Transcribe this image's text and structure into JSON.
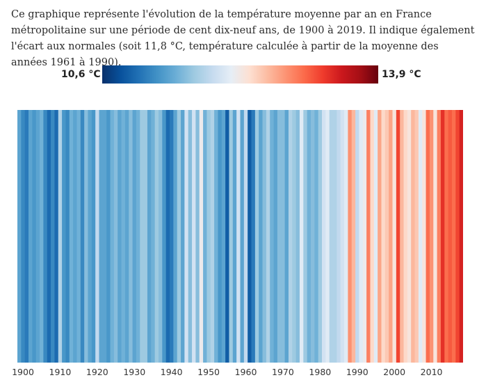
{
  "intro": {
    "text": "Ce graphique représente l'évolution de la température moyenne par an en France métropolitaine sur une période de cent dix-neuf ans, de 1900 à 2019. Il indique également l'écart aux normales (soit 11,8 °C, température calculée à partir de la moyenne des années 1961 à 1990)."
  },
  "colors": {
    "scale": [
      "#08306b",
      "#08519c",
      "#2171b5",
      "#4292c6",
      "#6baed6",
      "#9ecae1",
      "#c6dbef",
      "#e6eef6",
      "#fde0d2",
      "#fcbba1",
      "#fc9272",
      "#fb6a4a",
      "#ef3b2c",
      "#cb181d",
      "#a50f15",
      "#67000d"
    ]
  },
  "chart_data": {
    "type": "heatmap",
    "title": "",
    "legend_min_label": "10,6 °C",
    "legend_max_label": "13,9 °C",
    "value_min": 10.6,
    "value_max": 13.9,
    "normal": 11.8,
    "x_start": 1900,
    "x_end": 2019,
    "x_ticks": [
      "1900",
      "1910",
      "1920",
      "1930",
      "1940",
      "1950",
      "1960",
      "1970",
      "1980",
      "1990",
      "2000",
      "2010"
    ],
    "values": [
      11.4,
      11.2,
      11.1,
      11.4,
      11.3,
      11.4,
      11.5,
      11.2,
      11.0,
      11.2,
      11.0,
      11.8,
      11.3,
      11.2,
      11.5,
      11.4,
      11.5,
      11.2,
      11.6,
      11.4,
      11.3,
      11.9,
      11.4,
      11.4,
      11.3,
      11.5,
      11.6,
      11.4,
      11.5,
      11.4,
      11.6,
      11.4,
      11.5,
      11.7,
      11.7,
      11.4,
      11.5,
      11.7,
      11.6,
      11.3,
      11.0,
      11.1,
      11.4,
      11.7,
      11.4,
      12.0,
      11.6,
      12.0,
      11.6,
      12.2,
      11.5,
      11.7,
      11.8,
      11.5,
      11.3,
      11.4,
      10.9,
      11.7,
      11.4,
      12.0,
      11.4,
      11.9,
      10.9,
      11.1,
      11.7,
      11.4,
      11.6,
      11.8,
      11.5,
      11.4,
      11.6,
      11.6,
      11.4,
      11.8,
      11.7,
      11.6,
      12.1,
      11.7,
      11.5,
      11.6,
      11.5,
      11.7,
      12.0,
      12.1,
      11.8,
      11.8,
      11.9,
      12.0,
      12.1,
      12.8,
      12.6,
      11.9,
      12.1,
      12.2,
      12.9,
      12.4,
      12.1,
      12.7,
      12.4,
      12.5,
      12.7,
      12.3,
      13.2,
      12.6,
      12.4,
      12.3,
      12.6,
      12.5,
      12.1,
      12.3,
      13.0,
      12.8,
      12.3,
      12.9,
      13.3,
      13.0,
      13.1,
      13.0,
      13.2,
      13.4
    ]
  }
}
